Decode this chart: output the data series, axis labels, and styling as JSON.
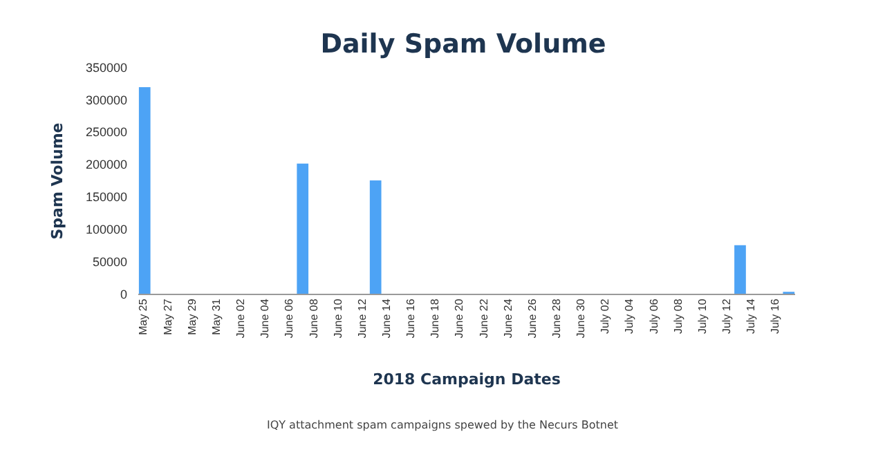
{
  "chart_data": {
    "type": "bar",
    "title": "Daily Spam Volume",
    "xlabel": "2018 Campaign Dates",
    "ylabel": "Spam Volume",
    "categories": [
      "May 25",
      null,
      "May 27",
      null,
      "May 29",
      null,
      "May 31",
      null,
      "June 02",
      null,
      "June 04",
      null,
      "June 06",
      null,
      "June 08",
      null,
      "June 10",
      null,
      "June 12",
      null,
      "June 14",
      null,
      "June 16",
      null,
      "June 18",
      null,
      "June 20",
      null,
      "June 22",
      null,
      "June 24",
      null,
      "June 26",
      null,
      "June 28",
      null,
      "June 30",
      null,
      "July 02",
      null,
      "July 04",
      null,
      "July 06",
      null,
      "July 08",
      null,
      "July 10",
      null,
      "July 12",
      null,
      "July 14",
      null,
      "July 16",
      null
    ],
    "values": [
      320000,
      0,
      0,
      0,
      0,
      0,
      0,
      0,
      0,
      0,
      0,
      0,
      0,
      202000,
      0,
      0,
      0,
      0,
      0,
      176000,
      0,
      0,
      0,
      0,
      0,
      0,
      0,
      0,
      0,
      0,
      0,
      0,
      0,
      0,
      0,
      0,
      0,
      0,
      0,
      0,
      0,
      0,
      0,
      0,
      0,
      0,
      0,
      0,
      0,
      76000,
      0,
      0,
      0,
      4000
    ],
    "color": "#4da3f5",
    "ylim": [
      0,
      350000
    ],
    "yticks": [
      0,
      50000,
      100000,
      150000,
      200000,
      250000,
      300000,
      350000
    ],
    "grid": false,
    "annotations": [
      "IQY attachment spam campaigns spewed by the Necurs Botnet"
    ]
  }
}
